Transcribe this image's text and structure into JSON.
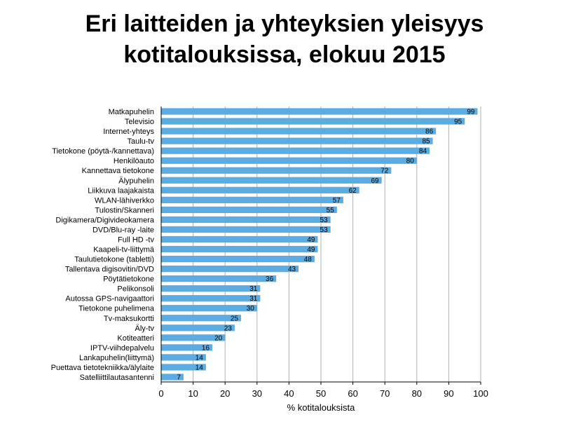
{
  "title_lines": [
    "Eri laitteiden ja yhteyksien yleisyys",
    "kotitalouksissa, elokuu 2015"
  ],
  "chart_data": {
    "type": "bar",
    "orientation": "horizontal",
    "title": "Eri laitteiden ja yhteyksien yleisyys kotitalouksissa, elokuu 2015",
    "xlabel": "% kotitalouksista",
    "ylabel": "",
    "xlim": [
      0,
      100
    ],
    "xticks": [
      0,
      10,
      20,
      30,
      40,
      50,
      60,
      70,
      80,
      90,
      100
    ],
    "grid": true,
    "bar_color": "#5aace2",
    "categories": [
      "Matkapuhelin",
      "Televisio",
      "Internet-yhteys",
      "Taulu-tv",
      "Tietokone (pöytä-/kannettava)",
      "Henkilöauto",
      "Kannettava tietokone",
      "Älypuhelin",
      "Liikkuva laajakaista",
      "WLAN-lähiverkko",
      "Tulostin/Skanneri",
      "Digikamera/Digivideokamera",
      "DVD/Blu-ray -laite",
      "Full HD -tv",
      "Kaapeli-tv-liittymä",
      "Taulutietokone (tabletti)",
      "Tallentava digisovitin/DVD",
      "Pöytätietokone",
      "Pelikonsoli",
      "Autossa GPS-navigaattori",
      "Tietokone puhelimena",
      "Tv-maksukortti",
      "Äly-tv",
      "Kotiteatteri",
      "IPTV-viihdepalvelu",
      "Lankapuhelin(liittymä)",
      "Puettava tietotekniikka/älylaite",
      "Satelliittilautasantenni"
    ],
    "values": [
      99,
      95,
      86,
      85,
      84,
      80,
      72,
      69,
      62,
      57,
      55,
      53,
      53,
      49,
      49,
      48,
      43,
      36,
      31,
      31,
      30,
      25,
      23,
      20,
      16,
      14,
      14,
      7
    ]
  }
}
